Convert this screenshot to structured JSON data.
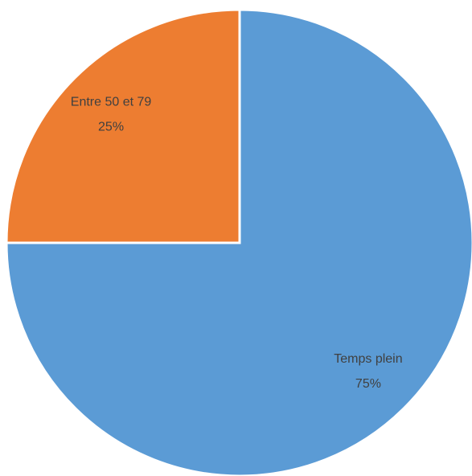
{
  "chart_data": {
    "type": "pie",
    "categories": [
      "Temps plein",
      "Entre 50 et 79"
    ],
    "values": [
      75,
      25
    ],
    "value_labels": [
      "75%",
      "25%"
    ],
    "colors": [
      "#5b9bd5",
      "#ed7d31"
    ]
  }
}
